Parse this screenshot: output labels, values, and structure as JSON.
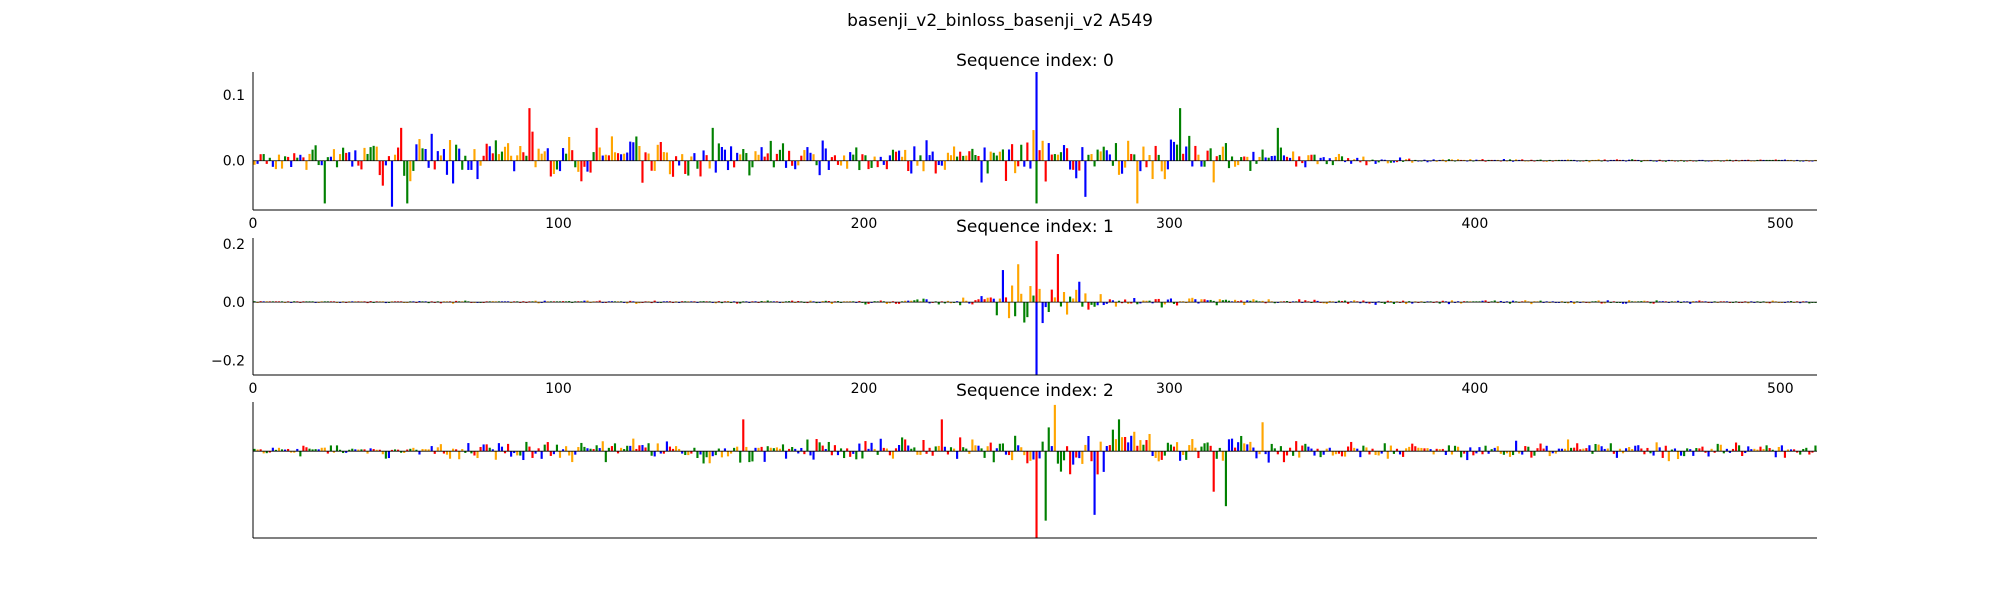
{
  "figure": {
    "title": "basenji_v2_binloss_basenji_v2 A549"
  },
  "colors": {
    "A": "#0000ff",
    "C": "#ffa500",
    "G": "#008000",
    "T": "#ff0000",
    "axis": "#000000"
  },
  "chart_data": [
    {
      "type": "line",
      "title": "Sequence index: 0",
      "x_ticks": [
        0,
        100,
        200,
        300,
        400,
        500
      ],
      "y_ticks": [
        0.1,
        0.0
      ],
      "xlim": [
        0,
        512
      ],
      "ylim": [
        -0.075,
        0.135
      ],
      "show_y_ticks": true,
      "activity_profile": [
        {
          "x": 0,
          "amp": 0.022
        },
        {
          "x": 40,
          "amp": 0.045
        },
        {
          "x": 60,
          "amp": 0.05
        },
        {
          "x": 100,
          "amp": 0.05
        },
        {
          "x": 160,
          "amp": 0.04
        },
        {
          "x": 200,
          "amp": 0.035
        },
        {
          "x": 230,
          "amp": 0.04
        },
        {
          "x": 255,
          "amp": 0.06
        },
        {
          "x": 280,
          "amp": 0.05
        },
        {
          "x": 300,
          "amp": 0.06
        },
        {
          "x": 330,
          "amp": 0.03
        },
        {
          "x": 360,
          "amp": 0.012
        },
        {
          "x": 380,
          "amp": 0.004
        },
        {
          "x": 512,
          "amp": 0.002
        }
      ],
      "peaks": [
        {
          "x": 256,
          "y": 0.135
        },
        {
          "x": 256,
          "y": -0.065
        },
        {
          "x": 45,
          "y": -0.07
        },
        {
          "x": 50,
          "y": -0.065
        },
        {
          "x": 23,
          "y": -0.065
        },
        {
          "x": 90,
          "y": 0.08
        },
        {
          "x": 48,
          "y": 0.05
        },
        {
          "x": 112,
          "y": 0.05
        },
        {
          "x": 150,
          "y": 0.05
        },
        {
          "x": 303,
          "y": 0.08
        },
        {
          "x": 289,
          "y": -0.065
        },
        {
          "x": 272,
          "y": -0.055
        },
        {
          "x": 335,
          "y": 0.05
        }
      ]
    },
    {
      "type": "line",
      "title": "Sequence index: 1",
      "x_ticks": [
        0,
        100,
        200,
        300,
        400,
        500
      ],
      "y_ticks": [
        0.2,
        0.0,
        -0.2
      ],
      "xlim": [
        0,
        512
      ],
      "ylim": [
        -0.25,
        0.22
      ],
      "show_y_ticks": true,
      "activity_profile": [
        {
          "x": 0,
          "amp": 0.005
        },
        {
          "x": 180,
          "amp": 0.008
        },
        {
          "x": 230,
          "amp": 0.015
        },
        {
          "x": 245,
          "amp": 0.07
        },
        {
          "x": 256,
          "amp": 0.12
        },
        {
          "x": 268,
          "amp": 0.08
        },
        {
          "x": 280,
          "amp": 0.025
        },
        {
          "x": 330,
          "amp": 0.012
        },
        {
          "x": 512,
          "amp": 0.005
        }
      ],
      "peaks": [
        {
          "x": 256,
          "y": 0.21
        },
        {
          "x": 256,
          "y": -0.25
        },
        {
          "x": 263,
          "y": 0.165
        },
        {
          "x": 250,
          "y": 0.13
        },
        {
          "x": 245,
          "y": 0.11
        },
        {
          "x": 270,
          "y": 0.07
        },
        {
          "x": 247,
          "y": -0.055
        },
        {
          "x": 252,
          "y": -0.07
        }
      ]
    },
    {
      "type": "line",
      "title": "Sequence index: 2",
      "x_ticks": [],
      "y_ticks": [],
      "xlim": [
        0,
        512
      ],
      "ylim": [
        -0.3,
        0.17
      ],
      "show_y_ticks": false,
      "activity_profile": [
        {
          "x": 0,
          "amp": 0.02
        },
        {
          "x": 90,
          "amp": 0.04
        },
        {
          "x": 130,
          "amp": 0.05
        },
        {
          "x": 200,
          "amp": 0.05
        },
        {
          "x": 240,
          "amp": 0.06
        },
        {
          "x": 256,
          "amp": 0.1
        },
        {
          "x": 275,
          "amp": 0.12
        },
        {
          "x": 300,
          "amp": 0.09
        },
        {
          "x": 320,
          "amp": 0.06
        },
        {
          "x": 360,
          "amp": 0.05
        },
        {
          "x": 420,
          "amp": 0.045
        },
        {
          "x": 512,
          "amp": 0.03
        }
      ],
      "peaks": [
        {
          "x": 256,
          "y": -0.3
        },
        {
          "x": 259,
          "y": -0.24
        },
        {
          "x": 262,
          "y": 0.16
        },
        {
          "x": 275,
          "y": -0.22
        },
        {
          "x": 318,
          "y": -0.19
        },
        {
          "x": 314,
          "y": -0.14
        },
        {
          "x": 225,
          "y": 0.11
        },
        {
          "x": 283,
          "y": 0.11
        },
        {
          "x": 160,
          "y": 0.11
        },
        {
          "x": 330,
          "y": 0.1
        }
      ]
    }
  ]
}
